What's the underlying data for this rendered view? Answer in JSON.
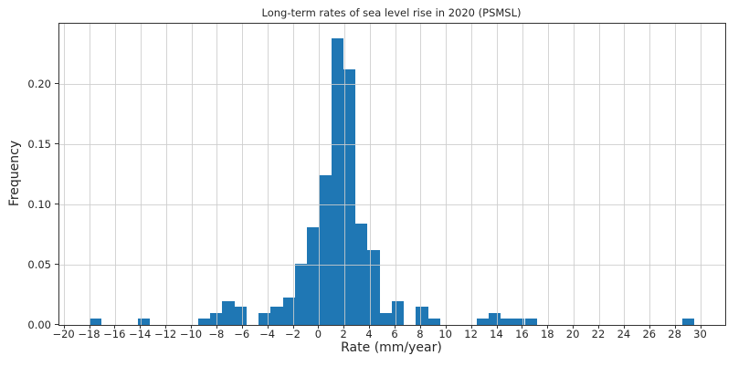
{
  "chart_data": {
    "type": "bar",
    "subtype": "histogram",
    "title": "Long-term rates of sea level rise in 2020 (PSMSL)",
    "xlabel": "Rate (mm/year)",
    "ylabel": "Frequency",
    "xlim": [
      -20.4,
      31.9
    ],
    "ylim": [
      0,
      0.25
    ],
    "xticks": [
      -20,
      -18,
      -16,
      -14,
      -12,
      -10,
      -8,
      -6,
      -4,
      -2,
      0,
      2,
      4,
      6,
      8,
      10,
      12,
      14,
      16,
      18,
      20,
      22,
      24,
      26,
      28,
      30
    ],
    "yticks": [
      0.0,
      0.05,
      0.1,
      0.15,
      0.2
    ],
    "ytick_labels": [
      "0.00",
      "0.05",
      "0.10",
      "0.15",
      "0.20"
    ],
    "grid": true,
    "legend": "none",
    "bin_width": 0.95,
    "bar_color": "#1f77b4",
    "grid_color": "#cccccc",
    "axis_color": "#333333",
    "bins": [
      {
        "x": -18.05,
        "h": 0.005
      },
      {
        "x": -14.25,
        "h": 0.005
      },
      {
        "x": -9.5,
        "h": 0.005
      },
      {
        "x": -8.55,
        "h": 0.01
      },
      {
        "x": -7.6,
        "h": 0.02
      },
      {
        "x": -6.65,
        "h": 0.015
      },
      {
        "x": -4.75,
        "h": 0.01
      },
      {
        "x": -3.8,
        "h": 0.015
      },
      {
        "x": -2.85,
        "h": 0.023
      },
      {
        "x": -1.9,
        "h": 0.051
      },
      {
        "x": -0.95,
        "h": 0.081
      },
      {
        "x": 0.0,
        "h": 0.124
      },
      {
        "x": 0.95,
        "h": 0.238
      },
      {
        "x": 1.9,
        "h": 0.212
      },
      {
        "x": 2.85,
        "h": 0.084
      },
      {
        "x": 3.8,
        "h": 0.062
      },
      {
        "x": 4.75,
        "h": 0.01
      },
      {
        "x": 5.7,
        "h": 0.02
      },
      {
        "x": 7.6,
        "h": 0.015
      },
      {
        "x": 8.55,
        "h": 0.005
      },
      {
        "x": 12.35,
        "h": 0.005
      },
      {
        "x": 13.3,
        "h": 0.01
      },
      {
        "x": 14.25,
        "h": 0.005
      },
      {
        "x": 15.2,
        "h": 0.005
      },
      {
        "x": 16.15,
        "h": 0.005
      },
      {
        "x": 28.5,
        "h": 0.005
      }
    ]
  }
}
